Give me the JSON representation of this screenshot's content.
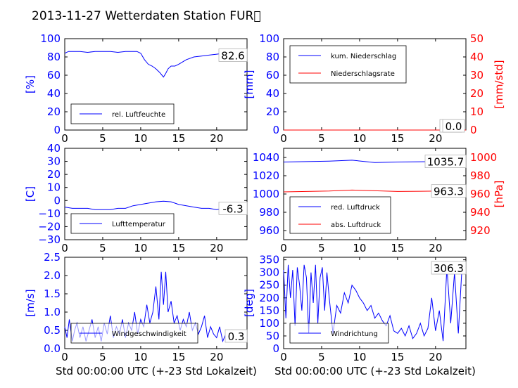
{
  "figure": {
    "title": "2013-11-27 Wetterdaten Station FUR\u0000",
    "xlabel": "Std 00:00:00 UTC (+-23 Std Lokalzeit)"
  },
  "colors": {
    "left_axis": "#0000ff",
    "right_axis": "#ff0000",
    "series_blue": "#0000ff",
    "series_red": "#ff0000"
  },
  "chart_data": [
    {
      "id": "humidity",
      "type": "line",
      "xlim": [
        0,
        24
      ],
      "ylim": [
        0,
        100
      ],
      "xticks": [
        "0",
        "5",
        "10",
        "15",
        "20"
      ],
      "yticks": [
        "0",
        "20",
        "40",
        "60",
        "80",
        "100"
      ],
      "ylabel": "[%]",
      "legend": "bottom-left",
      "value_box": "82.6",
      "series": [
        {
          "name": "rel. Luftfeuchte",
          "axis": "left",
          "x": [
            0,
            0.5,
            1,
            2,
            3,
            4,
            5,
            6,
            7,
            8,
            9,
            9.5,
            10,
            10.5,
            11,
            11.5,
            12,
            12.5,
            12.8,
            13,
            13.3,
            13.6,
            14,
            14.5,
            15,
            16,
            17,
            18,
            19,
            20,
            21,
            22,
            23,
            24
          ],
          "y": [
            84,
            86,
            86,
            86,
            85,
            86,
            86,
            86,
            85,
            86,
            86,
            86,
            84,
            77,
            72,
            70,
            67,
            63,
            60,
            58,
            62,
            67,
            70,
            70,
            72,
            77,
            80,
            81,
            82,
            83,
            84,
            83,
            82,
            82
          ]
        }
      ]
    },
    {
      "id": "precip",
      "type": "line",
      "xlim": [
        0,
        24
      ],
      "ylim": [
        0,
        100
      ],
      "ylim_right": [
        0,
        50
      ],
      "xticks": [
        "0",
        "5",
        "10",
        "15",
        "20"
      ],
      "yticks": [
        "0",
        "20",
        "40",
        "60",
        "80",
        "100"
      ],
      "yticks_right": [
        "0",
        "10",
        "20",
        "30",
        "40",
        "50"
      ],
      "ylabel": "[mm]",
      "ylabel_right": "[mm/std]",
      "legend": "top-left",
      "value_box": "0.0",
      "value_box2": "0.0",
      "series": [
        {
          "name": "kum. Niederschlag",
          "axis": "left",
          "x": [
            0,
            24
          ],
          "y": [
            0,
            0
          ]
        },
        {
          "name": "Niederschlagsrate",
          "axis": "right",
          "x": [
            0,
            24
          ],
          "y": [
            0,
            0
          ]
        }
      ]
    },
    {
      "id": "temperature",
      "type": "line",
      "xlim": [
        0,
        24
      ],
      "ylim": [
        -30,
        40
      ],
      "xticks": [
        "0",
        "5",
        "10",
        "15",
        "20"
      ],
      "yticks": [
        "−30",
        "−20",
        "−10",
        "0",
        "10",
        "20",
        "30",
        "40"
      ],
      "ylabel": "[C]",
      "legend": "bottom-left",
      "value_box": "-6.3",
      "series": [
        {
          "name": "Lufttemperatur",
          "axis": "left",
          "x": [
            0,
            1,
            2,
            3,
            4,
            5,
            6,
            7,
            8,
            9,
            10,
            11,
            12,
            13,
            14,
            15,
            16,
            17,
            18,
            19,
            20,
            21,
            22,
            23,
            24
          ],
          "y": [
            -5,
            -6,
            -6,
            -6,
            -7,
            -7,
            -7,
            -6,
            -6,
            -4,
            -3,
            -2,
            -1,
            -0.5,
            -1,
            -3,
            -4,
            -5,
            -6,
            -6,
            -7,
            -6,
            -6,
            -6,
            -6
          ]
        }
      ]
    },
    {
      "id": "pressure",
      "type": "line",
      "xlim": [
        0,
        24
      ],
      "ylim": [
        950,
        1050
      ],
      "ylim_right": [
        910,
        1010
      ],
      "xticks": [
        "0",
        "5",
        "10",
        "15",
        "20"
      ],
      "yticks": [
        "960",
        "980",
        "1000",
        "1020",
        "1040"
      ],
      "yticks_right": [
        "920",
        "940",
        "960",
        "980",
        "1000"
      ],
      "ylabel_right": "[hPa]",
      "legend": "bottom-left",
      "value_box": "1035.7",
      "value_box2": "963.3",
      "series": [
        {
          "name": "red. Luftdruck",
          "axis": "left",
          "x": [
            0,
            3,
            6,
            9,
            12,
            15,
            18,
            21,
            24
          ],
          "y": [
            1035,
            1035.5,
            1036,
            1037,
            1034.5,
            1035,
            1035.3,
            1035.6,
            1035.7
          ]
        },
        {
          "name": "abs. Luftdruck",
          "axis": "right",
          "x": [
            0,
            3,
            6,
            9,
            12,
            15,
            18,
            21,
            24
          ],
          "y": [
            962.3,
            962.8,
            963.2,
            964.3,
            963.5,
            962.8,
            963,
            963.2,
            963.3
          ]
        }
      ]
    },
    {
      "id": "wind_speed",
      "type": "line",
      "xlim": [
        0,
        24
      ],
      "ylim": [
        0,
        2.5
      ],
      "xticks": [
        "0",
        "5",
        "10",
        "15",
        "20"
      ],
      "yticks": [
        "0.0",
        "0.5",
        "1.0",
        "1.5",
        "2.0",
        "2.5"
      ],
      "ylabel": "[m/s]",
      "legend": "bottom-left",
      "value_box": "0.3",
      "series": [
        {
          "name": "Windgeschwindigkeit",
          "axis": "left",
          "x": [
            0,
            0.3,
            0.6,
            1,
            1.3,
            1.6,
            2,
            2.4,
            2.8,
            3.2,
            3.6,
            4,
            4.4,
            4.8,
            5.2,
            5.6,
            6,
            6.4,
            6.8,
            7.2,
            7.6,
            8,
            8.4,
            8.8,
            9.2,
            9.6,
            10,
            10.4,
            10.8,
            11.2,
            11.6,
            12,
            12.4,
            12.7,
            13,
            13.3,
            13.6,
            14,
            14.4,
            14.8,
            15.2,
            15.6,
            16,
            16.4,
            16.8,
            17.2,
            17.6,
            18,
            18.4,
            18.8,
            19.2,
            19.6,
            20,
            20.4,
            20.8,
            21.2,
            21.6,
            22,
            22.4,
            22.8,
            23.2,
            23.6,
            24
          ],
          "y": [
            0.6,
            0.3,
            0.8,
            0.2,
            0.5,
            0.7,
            0.3,
            0.6,
            0.2,
            0.5,
            0.8,
            0.3,
            0.6,
            0.2,
            0.7,
            0.4,
            0.9,
            0.3,
            0.6,
            0.4,
            0.8,
            0.3,
            0.7,
            0.5,
            1.0,
            0.4,
            0.8,
            0.6,
            1.2,
            0.7,
            1.0,
            1.7,
            0.8,
            2.1,
            1.2,
            2.1,
            1.0,
            1.3,
            0.7,
            0.9,
            0.5,
            0.8,
            0.6,
            1.0,
            0.5,
            0.7,
            0.4,
            0.6,
            0.9,
            0.3,
            0.6,
            0.4,
            0.3,
            0.6,
            0.2,
            0.4,
            0.3,
            0.5,
            0.2,
            0.4,
            0.3,
            0.5,
            0.3
          ]
        }
      ]
    },
    {
      "id": "wind_direction",
      "type": "line",
      "xlim": [
        0,
        24
      ],
      "ylim": [
        0,
        360
      ],
      "xticks": [
        "0",
        "5",
        "10",
        "15",
        "20"
      ],
      "yticks": [
        "0",
        "50",
        "100",
        "150",
        "200",
        "250",
        "300",
        "350"
      ],
      "ylabel": "[deg]",
      "legend": "bottom-left",
      "value_box": "306.3",
      "series": [
        {
          "name": "Windrichtung",
          "axis": "left",
          "x": [
            0,
            0.3,
            0.6,
            0.9,
            1.2,
            1.5,
            1.8,
            2.1,
            2.4,
            2.7,
            3,
            3.3,
            3.6,
            3.9,
            4.2,
            4.5,
            4.8,
            5.1,
            5.4,
            5.7,
            6,
            6.5,
            7,
            7.5,
            8,
            8.5,
            9,
            9.5,
            10,
            10.5,
            11,
            11.5,
            12,
            12.5,
            13,
            13.5,
            14,
            14.5,
            15,
            15.5,
            16,
            16.5,
            17,
            17.5,
            18,
            18.5,
            19,
            19.5,
            20,
            20.5,
            21,
            21.5,
            22,
            22.5,
            23,
            23.5,
            24
          ],
          "y": [
            310,
            120,
            330,
            200,
            310,
            90,
            320,
            250,
            150,
            330,
            280,
            60,
            300,
            180,
            330,
            100,
            280,
            320,
            150,
            300,
            200,
            60,
            170,
            140,
            220,
            180,
            250,
            230,
            200,
            180,
            150,
            170,
            120,
            140,
            110,
            90,
            130,
            70,
            60,
            80,
            50,
            90,
            40,
            60,
            100,
            50,
            80,
            200,
            70,
            150,
            30,
            320,
            100,
            300,
            60,
            330,
            306
          ]
        }
      ]
    }
  ]
}
